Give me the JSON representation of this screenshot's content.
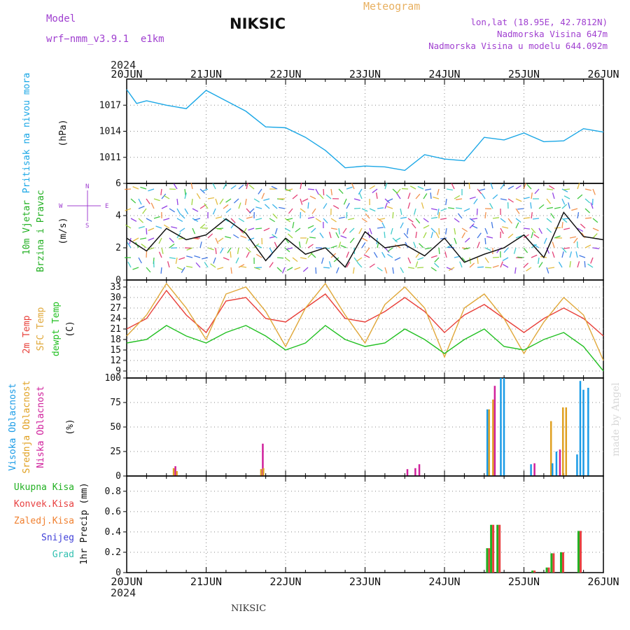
{
  "header": {
    "model_label": "Model",
    "model_name": "wrf−nmm_v3.9.1  e1km",
    "title": "NIKSIC",
    "subtitle": "Meteogram",
    "location": "lon,lat (18.95E, 42.7812N)",
    "altitude": "Nadmorska Visina 647m",
    "model_altitude": "Nadmorska Visina u modelu 644.092m",
    "year": "2024",
    "footer_station": "NIKSIC",
    "credit": "made by Angel"
  },
  "colors": {
    "pressure": "#1aa7e6",
    "temp2m": "#e8403a",
    "sfc": "#e0a83a",
    "dewpt": "#22c022",
    "high_cloud": "#1a9be6",
    "mid_cloud": "#e0a020",
    "low_cloud": "#d0209c",
    "total_precip": "#22b022",
    "conv_precip": "#e84040",
    "frozen_precip": "#f08030",
    "snow": "#4040d8",
    "hail": "#30c0b0",
    "header_purple": "#a040d0",
    "header_gold": "#e8b060"
  },
  "chart_data": [
    {
      "type": "line",
      "title": "",
      "ylabel_lines": [
        "Pritisak na nivou mora",
        "(hPa)"
      ],
      "x_ticks": [
        "20JUN",
        "21JUN",
        "22JUN",
        "23JUN",
        "24JUN",
        "25JUN",
        "26JUN"
      ],
      "y_ticks": [
        1011,
        1014,
        1017
      ],
      "ylim": [
        1008,
        1020
      ],
      "x": [
        0,
        0.125,
        0.25,
        0.5,
        0.75,
        1.0,
        1.25,
        1.5,
        1.75,
        2.0,
        2.25,
        2.5,
        2.75,
        3.0,
        3.25,
        3.5,
        3.75,
        4.0,
        4.25,
        4.5,
        4.75,
        5.0,
        5.25,
        5.5,
        5.75,
        6.0
      ],
      "series": [
        {
          "values": [
            1018.8,
            1017.2,
            1017.5,
            1017.0,
            1016.6,
            1018.7,
            1017.5,
            1016.3,
            1014.5,
            1014.4,
            1013.3,
            1011.8,
            1009.8,
            1010.0,
            1009.9,
            1009.5,
            1011.3,
            1010.8,
            1010.6,
            1013.3,
            1013.0,
            1013.8,
            1012.8,
            1012.9,
            1014.3,
            1013.9
          ]
        }
      ]
    },
    {
      "type": "line",
      "title": "",
      "ylabel_lines": [
        "10m Vjetar",
        "Brzina i Pravac",
        "(m/s)"
      ],
      "compass": [
        "N",
        "E",
        "S",
        "W"
      ],
      "x_ticks": [
        "20JUN",
        "21JUN",
        "22JUN",
        "23JUN",
        "24JUN",
        "25JUN",
        "26JUN"
      ],
      "y_ticks": [
        0,
        2,
        4,
        6
      ],
      "ylim": [
        0,
        6
      ],
      "x": [
        0,
        0.25,
        0.5,
        0.75,
        1.0,
        1.25,
        1.5,
        1.75,
        2.0,
        2.25,
        2.5,
        2.75,
        3.0,
        3.25,
        3.5,
        3.75,
        4.0,
        4.25,
        4.5,
        4.75,
        5.0,
        5.25,
        5.5,
        5.75,
        6.0
      ],
      "series": [
        {
          "values": [
            2.6,
            1.8,
            3.2,
            2.5,
            2.8,
            3.8,
            2.9,
            1.2,
            2.6,
            1.6,
            2.0,
            0.8,
            3.0,
            2.0,
            2.2,
            1.5,
            2.6,
            1.1,
            1.6,
            2.0,
            2.8,
            1.4,
            4.2,
            2.7,
            2.5
          ]
        }
      ]
    },
    {
      "type": "line",
      "title": "",
      "ylabel_lines": [
        "2m Temp",
        "SFC Temp",
        "dewpt Temp",
        "(C)"
      ],
      "x_ticks": [
        "20JUN",
        "21JUN",
        "22JUN",
        "23JUN",
        "24JUN",
        "25JUN",
        "26JUN"
      ],
      "y_ticks": [
        9,
        12,
        15,
        18,
        21,
        24,
        27,
        30,
        33
      ],
      "ylim": [
        7,
        35
      ],
      "x": [
        0,
        0.25,
        0.5,
        0.75,
        1.0,
        1.25,
        1.5,
        1.75,
        2.0,
        2.25,
        2.5,
        2.75,
        3.0,
        3.25,
        3.5,
        3.75,
        4.0,
        4.25,
        4.5,
        4.75,
        5.0,
        5.25,
        5.5,
        5.75,
        6.0
      ],
      "series": [
        {
          "name": "2m Temp",
          "values": [
            21,
            24,
            32,
            25,
            20,
            29,
            30,
            24,
            23,
            27,
            31,
            24,
            23,
            26,
            30,
            26,
            20,
            25,
            28,
            24,
            20,
            24,
            27,
            24,
            19
          ]
        },
        {
          "name": "SFC Temp",
          "values": [
            19,
            25,
            34,
            27,
            18,
            31,
            33,
            26,
            16,
            27,
            34,
            25,
            17,
            28,
            33,
            27,
            13,
            27,
            31,
            24,
            14,
            23,
            30,
            25,
            12
          ]
        },
        {
          "name": "dewpt Temp",
          "values": [
            17,
            18,
            22,
            19,
            17,
            20,
            22,
            19,
            15,
            17,
            22,
            18,
            16,
            17,
            21,
            18,
            14,
            18,
            21,
            16,
            15,
            18,
            20,
            16,
            9
          ]
        }
      ]
    },
    {
      "type": "bar",
      "title": "",
      "ylabel_lines": [
        "Visoka Oblacnost",
        "Srednja Oblacnost",
        "Niska Oblacnost",
        "(%)"
      ],
      "x_ticks": [
        "20JUN",
        "21JUN",
        "22JUN",
        "23JUN",
        "24JUN",
        "25JUN",
        "26JUN"
      ],
      "y_ticks": [
        0,
        25,
        50,
        75,
        100
      ],
      "ylim": [
        0,
        100
      ],
      "x": [
        0.58,
        0.62,
        1.68,
        1.71,
        3.5,
        3.6,
        3.65,
        4.55,
        4.6,
        4.72,
        4.76,
        5.1,
        5.33,
        5.37,
        5.42,
        5.48,
        5.52,
        5.68,
        5.72,
        5.76,
        5.82
      ],
      "series": [
        {
          "name": "Visoka Oblacnost",
          "values": [
            0,
            0,
            0,
            0,
            0,
            0,
            0,
            68,
            0,
            100,
            100,
            12,
            0,
            13,
            25,
            0,
            0,
            22,
            97,
            88,
            90
          ]
        },
        {
          "name": "Srednja Oblacnost",
          "values": [
            8,
            5,
            7,
            8,
            0,
            0,
            0,
            68,
            78,
            0,
            0,
            0,
            56,
            0,
            0,
            70,
            70,
            0,
            0,
            0,
            0
          ]
        },
        {
          "name": "Niska Oblacnost",
          "values": [
            10,
            0,
            33,
            0,
            7,
            8,
            12,
            0,
            92,
            0,
            0,
            13,
            0,
            0,
            27,
            0,
            0,
            0,
            0,
            0,
            0
          ]
        }
      ]
    },
    {
      "type": "bar",
      "title": "",
      "ylabel_lines": [
        "1hr Precip (mm)"
      ],
      "legend": [
        "Ukupna Kisa",
        "Konvek.Kisa",
        "Zaledj.Kisa",
        "Snijeg",
        "Grad"
      ],
      "x_ticks": [
        "20JUN",
        "21JUN",
        "22JUN",
        "23JUN",
        "24JUN",
        "25JUN",
        "26JUN"
      ],
      "y_ticks": [
        0,
        0.2,
        0.4,
        0.6,
        0.8
      ],
      "ylim": [
        0,
        0.95
      ],
      "x": [
        4.55,
        4.6,
        4.68,
        5.12,
        5.3,
        5.36,
        5.48,
        5.7
      ],
      "series": [
        {
          "name": "Ukupna Kisa",
          "values": [
            0.24,
            0.47,
            0.47,
            0.02,
            0.05,
            0.19,
            0.2,
            0.41
          ]
        },
        {
          "name": "Konvek.Kisa",
          "values": [
            0.24,
            0.47,
            0.47,
            0.02,
            0.05,
            0.19,
            0.2,
            0.41
          ]
        }
      ]
    }
  ]
}
